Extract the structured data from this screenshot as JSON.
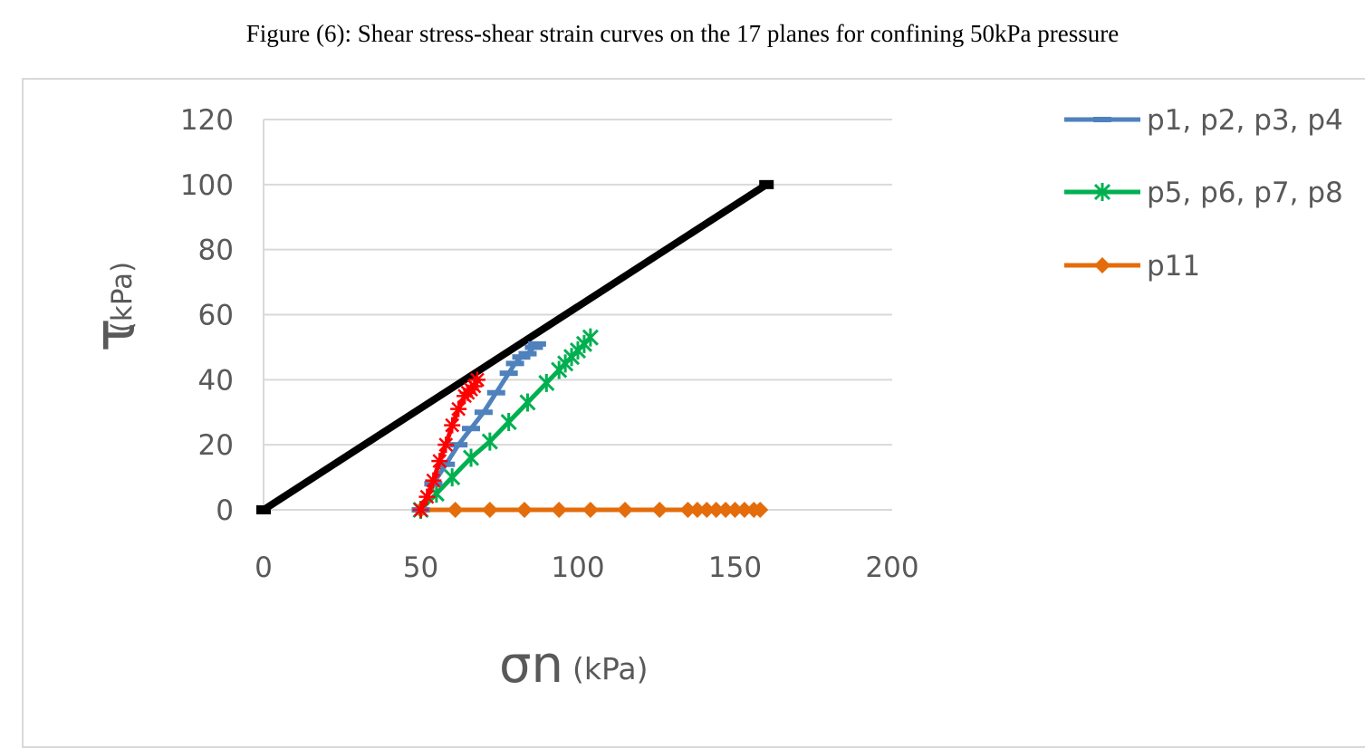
{
  "caption": "Figure (6): Shear stress-shear strain curves on the 17 planes for confining 50kPa pressure",
  "chart_data": {
    "type": "line",
    "title": "",
    "ylabel_symbol": "τ",
    "ylabel_unit": "(kPa)",
    "xlabel_symbol": "σn",
    "xlabel_unit": "(kPa)",
    "xlim": [
      0,
      200
    ],
    "ylim": [
      0,
      120
    ],
    "xticks": [
      "0",
      "50",
      "100",
      "150",
      "200"
    ],
    "yticks": [
      "0",
      "20",
      "40",
      "60",
      "80",
      "100",
      "120"
    ],
    "grid": true,
    "legend_position": "right",
    "series": [
      {
        "name": "",
        "color": "#000000",
        "marker": "square",
        "x": [
          0,
          160
        ],
        "y": [
          0,
          100
        ]
      },
      {
        "name": "",
        "color": "#ff0000",
        "marker": "star",
        "x": [
          50,
          52,
          54,
          56,
          58,
          60,
          62,
          64,
          65,
          66,
          67,
          68
        ],
        "y": [
          0,
          4,
          9,
          15,
          20,
          26,
          31,
          35,
          36,
          37,
          38,
          40
        ]
      },
      {
        "name": "p1, p2, p3, p4",
        "color": "#4f81bd",
        "marker": "dash",
        "x": [
          50,
          54,
          58,
          62,
          66,
          70,
          74,
          78,
          80,
          82,
          84,
          86,
          87
        ],
        "y": [
          0,
          8,
          14,
          20,
          25,
          30,
          36,
          42,
          45,
          47,
          48,
          50,
          51
        ]
      },
      {
        "name": "p5, p6, p7, p8",
        "color": "#00b050",
        "marker": "asterisk",
        "x": [
          50,
          55,
          60,
          66,
          72,
          78,
          84,
          90,
          94,
          96,
          98,
          100,
          102,
          104
        ],
        "y": [
          0,
          5,
          10,
          16,
          21,
          27,
          33,
          39,
          43,
          45,
          47,
          49,
          51,
          53
        ]
      },
      {
        "name": "p11",
        "color": "#e46c0a",
        "marker": "diamond",
        "x": [
          50,
          61,
          72,
          83,
          94,
          104,
          115,
          126,
          135,
          138,
          141,
          144,
          147,
          150,
          153,
          156,
          158
        ],
        "y": [
          0,
          0,
          0,
          0,
          0,
          0,
          0,
          0,
          0,
          0,
          0,
          0,
          0,
          0,
          0,
          0,
          0
        ]
      }
    ]
  }
}
